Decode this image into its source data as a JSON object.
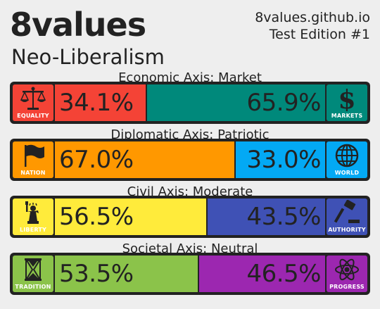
{
  "header": {
    "brand": "8values",
    "ideology": "Neo-Liberalism",
    "site": "8values.github.io",
    "edition": "Test Edition #1"
  },
  "axes": [
    {
      "title": "Economic Axis: Market",
      "left": {
        "label": "EQUALITY",
        "percent": "34.1%",
        "value": 34.1,
        "color": "#f44336",
        "icon": "scales-icon"
      },
      "right": {
        "label": "MARKETS",
        "percent": "65.9%",
        "value": 65.9,
        "color": "#00897b",
        "icon": "dollar-icon"
      }
    },
    {
      "title": "Diplomatic Axis: Patriotic",
      "left": {
        "label": "NATION",
        "percent": "67.0%",
        "value": 67.0,
        "color": "#ff9800",
        "icon": "flag-icon"
      },
      "right": {
        "label": "WORLD",
        "percent": "33.0%",
        "value": 33.0,
        "color": "#03a9f4",
        "icon": "globe-icon"
      }
    },
    {
      "title": "Civil Axis: Moderate",
      "left": {
        "label": "LIBERTY",
        "percent": "56.5%",
        "value": 56.5,
        "color": "#ffeb3b",
        "icon": "statue-of-liberty-icon"
      },
      "right": {
        "label": "AUTHORITY",
        "percent": "43.5%",
        "value": 43.5,
        "color": "#3f51b5",
        "icon": "gavel-icon"
      }
    },
    {
      "title": "Societal Axis: Neutral",
      "left": {
        "label": "TRADITION",
        "percent": "53.5%",
        "value": 53.5,
        "color": "#8bc34a",
        "icon": "hourglass-icon"
      },
      "right": {
        "label": "PROGRESS",
        "percent": "46.5%",
        "value": 46.5,
        "color": "#9c27b0",
        "icon": "atom-icon"
      }
    }
  ]
}
